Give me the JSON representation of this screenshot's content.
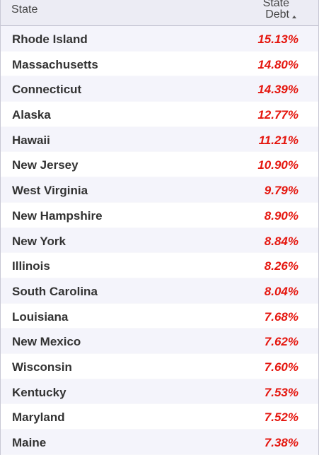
{
  "header": {
    "state": "State",
    "debt": "State Debt"
  },
  "table": {
    "rows": [
      [
        "Rhode Island",
        "15.13%"
      ],
      [
        "Massachusetts",
        "14.80%"
      ],
      [
        "Connecticut",
        "14.39%"
      ],
      [
        "Alaska",
        "12.77%"
      ],
      [
        "Hawaii",
        "11.21%"
      ],
      [
        "New Jersey",
        "10.90%"
      ],
      [
        "West Virginia",
        "9.79%"
      ],
      [
        "New Hampshire",
        "8.90%"
      ],
      [
        "New York",
        "8.84%"
      ],
      [
        "Illinois",
        "8.26%"
      ],
      [
        "South Carolina",
        "8.04%"
      ],
      [
        "Louisiana",
        "7.68%"
      ],
      [
        "New Mexico",
        "7.62%"
      ],
      [
        "Wisconsin",
        "7.60%"
      ],
      [
        "Kentucky",
        "7.53%"
      ],
      [
        "Maryland",
        "7.52%"
      ],
      [
        "Maine",
        "7.38%"
      ]
    ]
  }
}
